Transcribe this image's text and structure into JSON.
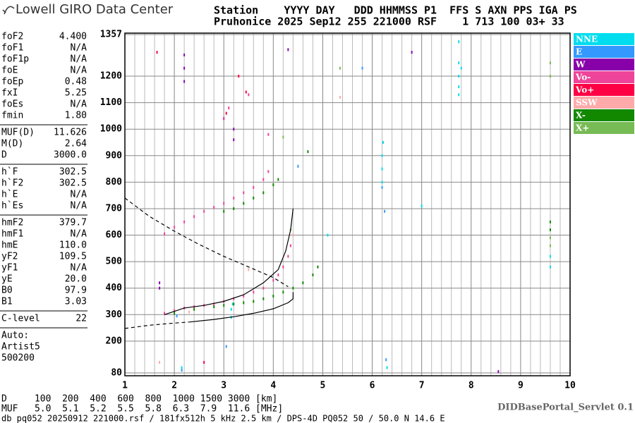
{
  "header": {
    "logo": "Lowell GIRO Data Center",
    "line1": "Station    YYYY DAY   DDD HHMMSS P1  FFS S AXN PPS IGA PS",
    "line2": "Pruhonice 2025 Sep12 255 221000 RSF    1 713 100 03+ 33"
  },
  "parameters": [
    [
      {
        "label": "foF2",
        "value": "4.400"
      },
      {
        "label": "foF1",
        "value": "N/A"
      },
      {
        "label": "foF1p",
        "value": "N/A"
      },
      {
        "label": "foE",
        "value": "N/A"
      },
      {
        "label": "foEp",
        "value": "0.48"
      },
      {
        "label": "fxI",
        "value": "5.25"
      },
      {
        "label": "foEs",
        "value": "N/A"
      },
      {
        "label": "fmin",
        "value": "1.80"
      }
    ],
    [
      {
        "label": "MUF(D)",
        "value": "11.626"
      },
      {
        "label": "M(D)",
        "value": "2.64"
      },
      {
        "label": "D",
        "value": "3000.0"
      }
    ],
    [
      {
        "label": "h`F",
        "value": "302.5"
      },
      {
        "label": "h`F2",
        "value": "302.5"
      },
      {
        "label": "h`E",
        "value": "N/A"
      },
      {
        "label": "h`Es",
        "value": "N/A"
      }
    ],
    [
      {
        "label": "hmF2",
        "value": "379.7"
      },
      {
        "label": "hmF1",
        "value": "N/A"
      },
      {
        "label": "hmE",
        "value": "110.0"
      },
      {
        "label": "yF2",
        "value": "109.5"
      },
      {
        "label": "yF1",
        "value": "N/A"
      },
      {
        "label": "yE",
        "value": "20.0"
      },
      {
        "label": "B0",
        "value": "97.9"
      },
      {
        "label": "B1",
        "value": "3.03"
      }
    ],
    [
      {
        "label": "C-level",
        "value": "22"
      }
    ]
  ],
  "auto": [
    "Auto:",
    "Artist5",
    "500200"
  ],
  "bottom": {
    "d_row": "D     100  200  400  600  800  1000 1500 3000 [km]",
    "muf_row": "MUF   5.0  5.1  5.2  5.5  5.8  6.3  7.9  11.6 [MHz]",
    "footer": "db pq052 20250912 221000.rsf / 181fx512h 5 kHz 2.5 km / DPS-4D PQ052 50 / 50.0 N 14.6 E",
    "servlet": "DIDBasePortal_Servlet 0.1"
  },
  "chart_data": {
    "type": "scatter",
    "xlim": [
      1,
      10
    ],
    "xticks": [
      1,
      2,
      3,
      4,
      5,
      6,
      7,
      8,
      9,
      10
    ],
    "ylim": [
      80,
      1357
    ],
    "yticks": [
      80,
      200,
      300,
      400,
      500,
      600,
      700,
      800,
      900,
      1000,
      1100,
      1200,
      1357
    ],
    "grid": true,
    "series": [
      {
        "name": "NNE",
        "color": "#00ddee",
        "x": [
          7.75,
          7.75,
          7.75,
          7.75,
          7.8,
          6.2,
          6.2,
          6.2,
          6.22,
          3.15,
          3.15,
          3.18,
          2.15,
          7.0,
          5.1,
          6.3,
          9.6,
          9.6,
          7.75
        ],
        "y": [
          1130,
          1160,
          1200,
          1250,
          1230,
          800,
          850,
          900,
          950,
          290,
          320,
          340,
          100,
          710,
          600,
          100,
          480,
          520,
          1330
        ]
      },
      {
        "name": "E",
        "color": "#3399ff",
        "x": [
          6.2,
          6.25,
          5.8,
          2.15,
          3.05,
          6.28,
          2.05,
          4.5
        ],
        "y": [
          780,
          690,
          1230,
          90,
          180,
          130,
          295,
          860
        ]
      },
      {
        "name": "W",
        "color": "#8800aa",
        "x": [
          1.7,
          1.7,
          2.2,
          2.2,
          2.2,
          3.2,
          3.2,
          6.8,
          4.3,
          3.0,
          8.55
        ],
        "y": [
          400,
          420,
          1180,
          1230,
          1280,
          960,
          1000,
          1290,
          1300,
          1040,
          85
        ]
      },
      {
        "name": "Vo-",
        "color": "#ee4499",
        "x": [
          1.8,
          2.0,
          2.2,
          2.4,
          2.6,
          2.8,
          3.0,
          3.2,
          3.4,
          3.6,
          3.8,
          4.0,
          4.1,
          4.2,
          4.3,
          4.35,
          1.8,
          2.0,
          2.2,
          2.4,
          2.6,
          2.8,
          3.0,
          3.2,
          3.4,
          3.6,
          3.8,
          3.9,
          3.0,
          3.1,
          3.5,
          3.9
        ],
        "y": [
          305,
          315,
          325,
          330,
          335,
          340,
          350,
          360,
          370,
          385,
          400,
          430,
          450,
          480,
          520,
          560,
          605,
          630,
          650,
          670,
          690,
          705,
          720,
          740,
          760,
          780,
          810,
          840,
          1040,
          1080,
          1130,
          980
        ]
      },
      {
        "name": "Vo+",
        "color": "#ff0044",
        "x": [
          3.05,
          3.3,
          3.45,
          1.65,
          2.6
        ],
        "y": [
          1060,
          1200,
          1140,
          1290,
          120
        ]
      },
      {
        "name": "SSW",
        "color": "#ffaaaa",
        "x": [
          1.7,
          3.5,
          5.35,
          2.3,
          4.4
        ],
        "y": [
          120,
          470,
          1120,
          310,
          600
        ]
      },
      {
        "name": "X-",
        "color": "#118800",
        "x": [
          2.0,
          2.4,
          2.8,
          3.0,
          3.2,
          3.4,
          3.6,
          3.8,
          4.0,
          4.2,
          4.4,
          4.6,
          4.8,
          4.9,
          3.0,
          3.2,
          3.4,
          3.6,
          3.8,
          4.0,
          4.1,
          9.6,
          9.6,
          4.7
        ],
        "y": [
          305,
          320,
          330,
          335,
          340,
          345,
          350,
          360,
          370,
          385,
          400,
          420,
          450,
          480,
          690,
          700,
          720,
          740,
          760,
          790,
          810,
          620,
          650,
          915
        ]
      },
      {
        "name": "X+",
        "color": "#77bb55",
        "x": [
          9.6,
          9.6,
          9.6,
          9.6,
          5.35,
          4.2,
          4.35
        ],
        "y": [
          560,
          590,
          1250,
          1200,
          1230,
          970,
          620
        ]
      }
    ],
    "curves": [
      {
        "x": [
          1.0,
          1.5,
          2.0,
          2.5,
          3.0,
          3.5,
          4.0,
          4.3
        ],
        "y": [
          740,
          670,
          615,
          565,
          520,
          480,
          440,
          405
        ],
        "style": "dashed"
      },
      {
        "x": [
          1.0,
          1.5,
          2.0,
          2.3
        ],
        "y": [
          248,
          260,
          268,
          272
        ],
        "style": "dashed"
      },
      {
        "x": [
          2.3,
          2.8,
          3.2,
          3.6,
          4.0,
          4.3,
          4.4,
          4.4
        ],
        "y": [
          272,
          282,
          292,
          305,
          322,
          345,
          360,
          385
        ],
        "style": "solid"
      },
      {
        "x": [
          1.8,
          2.2,
          2.6,
          3.0,
          3.4,
          3.8,
          4.1,
          4.25,
          4.35,
          4.4
        ],
        "y": [
          300,
          325,
          335,
          350,
          375,
          420,
          470,
          540,
          620,
          700
        ],
        "style": "solid"
      }
    ]
  }
}
